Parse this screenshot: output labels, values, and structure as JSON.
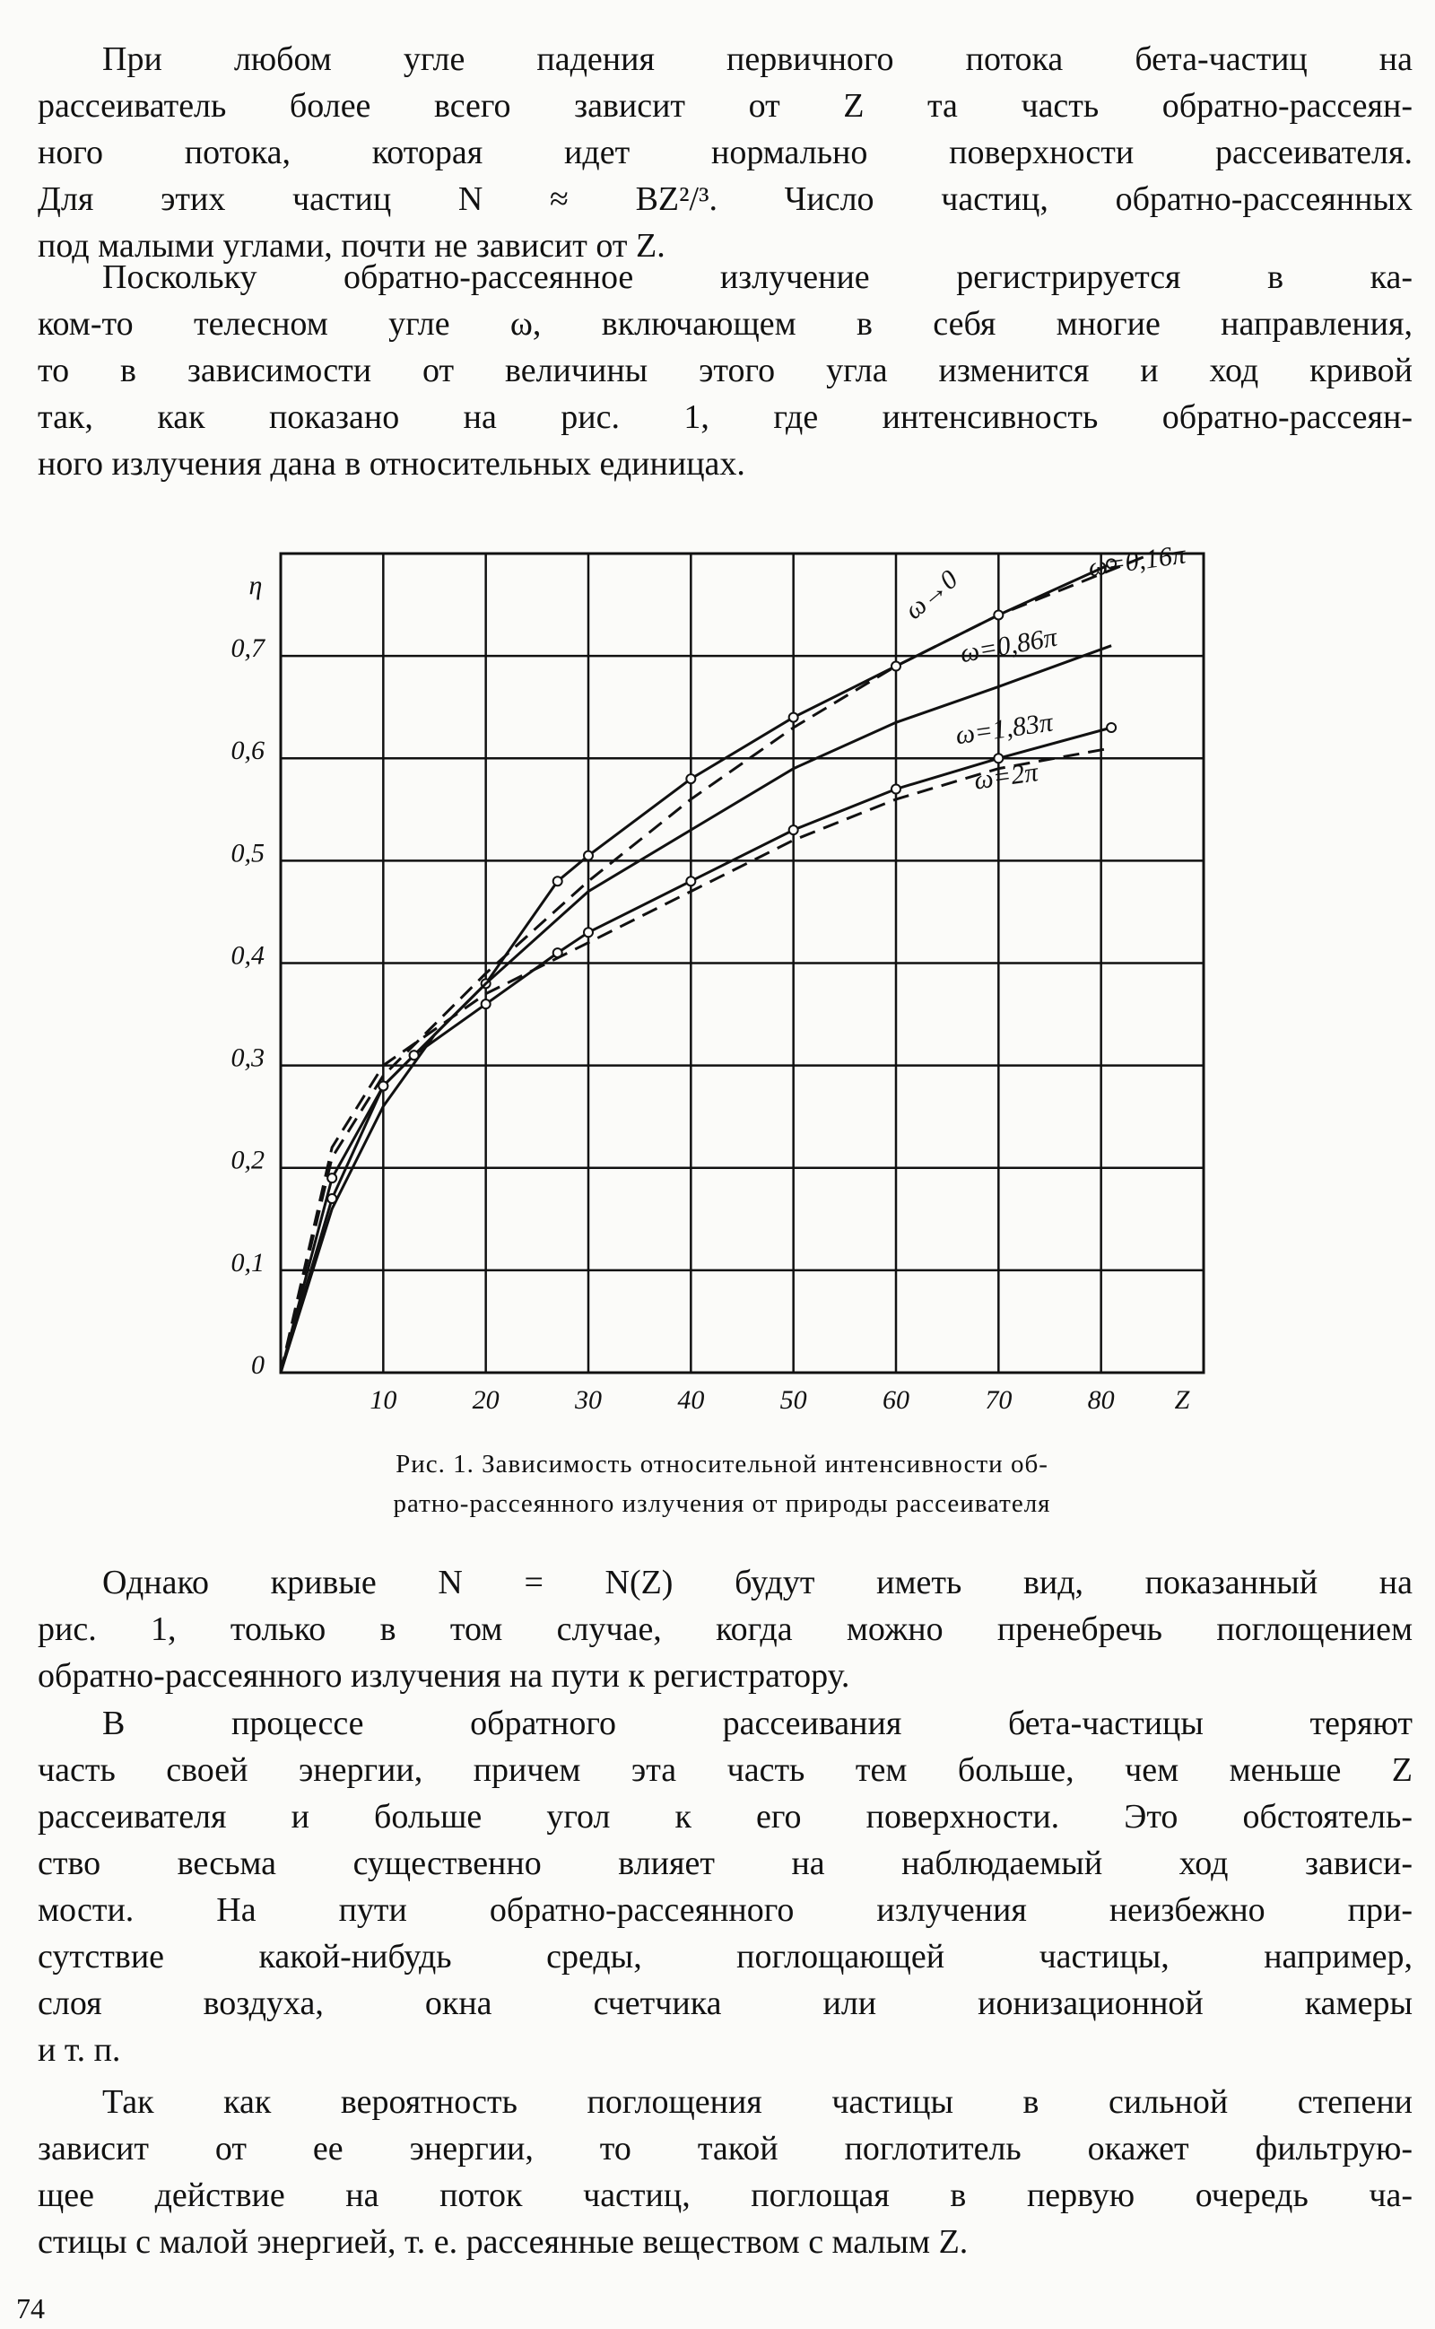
{
  "paragraphs_top": [
    [
      "При любом угле падения первичного потока бета-частиц на",
      "рассеиватель более всего зависит от Z та часть обратно-рассеян-",
      "ного потока, которая идет нормально поверхности рассеивателя.",
      "Для этих частиц N ≈ BZ²/³. Число частиц, обратно-рассеянных",
      "под малыми углами, почти не зависит от Z."
    ],
    [
      "Поскольку обратно-рассеянное излучение регистрируется в ка-",
      "ком-то телесном угле ω, включающем в себя многие направления,",
      "то в зависимости от величины этого угла изменится и ход кривой",
      "так, как показано на рис. 1, где интенсивность обратно-рассеян-",
      "ного излучения дана в относительных единицах."
    ]
  ],
  "chart_data": {
    "type": "line",
    "x_label": "Z",
    "y_label": "η",
    "xlim": [
      0,
      90
    ],
    "xticks": [
      10,
      20,
      30,
      40,
      50,
      60,
      70,
      80
    ],
    "ylim": [
      0,
      0.8
    ],
    "yticks": [
      {
        "value": 0,
        "label": "0"
      },
      {
        "value": 0.1,
        "label": "0,1"
      },
      {
        "value": 0.2,
        "label": "0,2"
      },
      {
        "value": 0.3,
        "label": "0,3"
      },
      {
        "value": 0.4,
        "label": "0,4"
      },
      {
        "value": 0.5,
        "label": "0,5"
      },
      {
        "value": 0.6,
        "label": "0,6"
      },
      {
        "value": 0.7,
        "label": "0,7"
      }
    ],
    "grid": true,
    "series": [
      {
        "name": "ω→0",
        "color": "#111111",
        "dashed": true,
        "markers": false,
        "x": [
          0,
          5,
          10,
          20,
          30,
          40,
          50,
          60,
          70,
          80,
          85
        ],
        "values": [
          0,
          0.21,
          0.29,
          0.39,
          0.48,
          0.56,
          0.63,
          0.69,
          0.74,
          0.78,
          0.8
        ]
      },
      {
        "name": "ω=0,16π",
        "color": "#111111",
        "dashed": false,
        "markers": true,
        "x": [
          0,
          5,
          10,
          13,
          20,
          27,
          30,
          40,
          50,
          60,
          70,
          81
        ],
        "values": [
          0,
          0.19,
          0.28,
          0.31,
          0.38,
          0.48,
          0.505,
          0.58,
          0.64,
          0.69,
          0.74,
          0.79
        ]
      },
      {
        "name": "ω=0,86π",
        "color": "#111111",
        "dashed": false,
        "markers": false,
        "x": [
          0,
          5,
          10,
          15,
          20,
          30,
          40,
          50,
          60,
          70,
          81
        ],
        "values": [
          0,
          0.16,
          0.26,
          0.33,
          0.38,
          0.47,
          0.53,
          0.59,
          0.635,
          0.67,
          0.71
        ]
      },
      {
        "name": "ω=1,83π",
        "color": "#111111",
        "dashed": false,
        "markers": true,
        "x": [
          0,
          5,
          10,
          13,
          20,
          27,
          30,
          40,
          50,
          60,
          70,
          81
        ],
        "values": [
          0,
          0.17,
          0.28,
          0.31,
          0.36,
          0.41,
          0.43,
          0.48,
          0.53,
          0.57,
          0.6,
          0.63
        ]
      },
      {
        "name": "ω=2π",
        "color": "#111111",
        "dashed": true,
        "markers": false,
        "x": [
          0,
          5,
          10,
          20,
          30,
          40,
          50,
          60,
          70,
          81
        ],
        "values": [
          0,
          0.22,
          0.3,
          0.37,
          0.42,
          0.47,
          0.52,
          0.56,
          0.59,
          0.61
        ]
      }
    ]
  },
  "caption": [
    "Рис. 1. Зависимость относительной интенсивности об-",
    "ратно-рассеянного излучения от природы рассеивателя"
  ],
  "paragraphs_bottom": [
    [
      "Однако кривые N = N(Z) будут иметь вид, показанный на",
      "рис. 1, только в том случае, когда можно пренебречь поглощением",
      "обратно-рассеянного излучения на пути к регистратору."
    ],
    [
      "В процессе обратного рассеивания бета-частицы теряют",
      "часть своей энергии, причем эта часть тем больше, чем меньше Z",
      "рассеивателя и больше угол к его поверхности. Это обстоятель-",
      "ство весьма существенно влияет на наблюдаемый ход зависи-",
      "мости. На пути обратно-рассеянного излучения неизбежно при-",
      "сутствие какой-нибудь среды, поглощающей частицы, например,",
      "слоя воздуха, окна счетчика или ионизационной камеры",
      "и т. п."
    ],
    [
      "Так как вероятность поглощения частицы в сильной степени",
      "зависит от ее энергии, то такой поглотитель окажет фильтрую-",
      "щее действие на поток частиц, поглощая в первую очередь ча-",
      "стицы с малой энергией, т. е. рассеянные веществом с малым Z."
    ]
  ],
  "page_number": "74"
}
